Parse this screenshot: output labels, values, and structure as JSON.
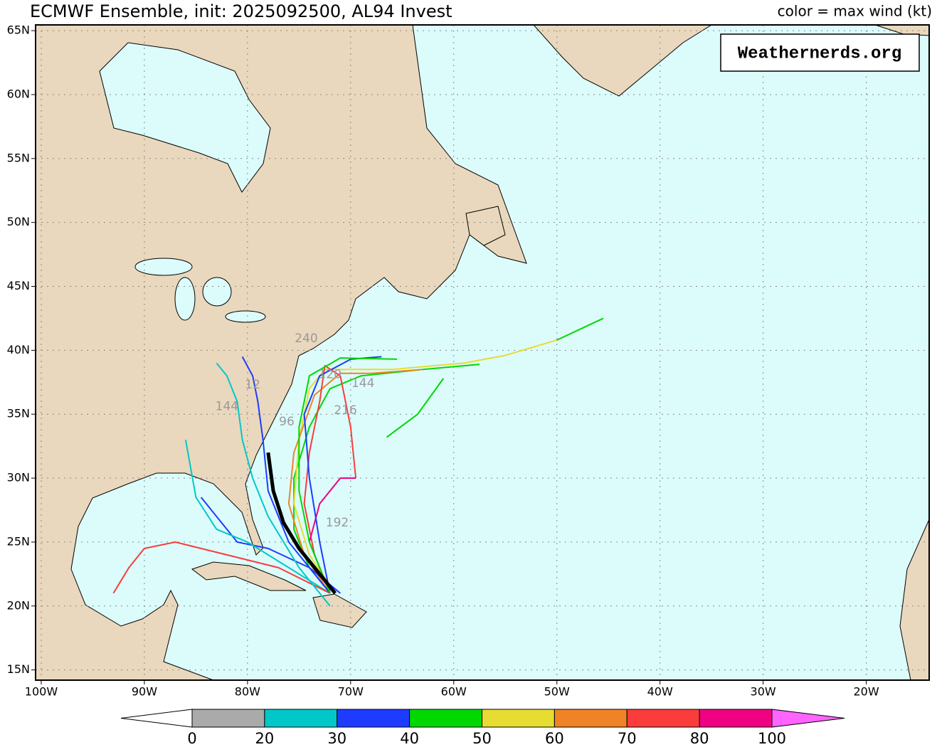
{
  "title": "ECMWF Ensemble, init: 2025092500, AL94 Invest",
  "legend_title": "color = max wind (kt)",
  "watermark": "Weathernerds.org",
  "map": {
    "lon_range": [
      -100.55,
      -13.9
    ],
    "lat_range": [
      14.2,
      65.45
    ],
    "lon_ticks": [
      {
        "value": -100,
        "label": "100W"
      },
      {
        "value": -90,
        "label": "90W"
      },
      {
        "value": -80,
        "label": "80W"
      },
      {
        "value": -70,
        "label": "70W"
      },
      {
        "value": -60,
        "label": "60W"
      },
      {
        "value": -50,
        "label": "50W"
      },
      {
        "value": -40,
        "label": "40W"
      },
      {
        "value": -30,
        "label": "30W"
      },
      {
        "value": -20,
        "label": "20W"
      }
    ],
    "lat_ticks": [
      {
        "value": 65,
        "label": "65N"
      },
      {
        "value": 60,
        "label": "60N"
      },
      {
        "value": 55,
        "label": "55N"
      },
      {
        "value": 50,
        "label": "50N"
      },
      {
        "value": 45,
        "label": "45N"
      },
      {
        "value": 40,
        "label": "40N"
      },
      {
        "value": 35,
        "label": "35N"
      },
      {
        "value": 30,
        "label": "30N"
      },
      {
        "value": 25,
        "label": "25N"
      },
      {
        "value": 20,
        "label": "20N"
      },
      {
        "value": 15,
        "label": "15N"
      }
    ],
    "tracks": [
      {
        "color": "#00d800",
        "lon": [
          -72,
          -74,
          -75.5,
          -75.5,
          -74,
          -72,
          -69,
          -63,
          -57.5
        ],
        "lat": [
          21,
          23,
          26,
          30,
          34,
          37,
          38,
          38.5,
          38.9
        ]
      },
      {
        "color": "#e6dc32",
        "lon": [
          -71.5,
          -74,
          -75.5,
          -75,
          -74,
          -72.5,
          -66,
          -59,
          -55,
          -50
        ],
        "lat": [
          21,
          24,
          28,
          33,
          37,
          38.5,
          38.5,
          39,
          39.6,
          40.8
        ]
      },
      {
        "color": "#00d800",
        "lon": [
          -50,
          -45.5
        ],
        "lat": [
          40.8,
          42.5
        ]
      },
      {
        "color": "#00d800",
        "lon": [
          -66.5,
          -63.5,
          -61
        ],
        "lat": [
          33.2,
          35,
          37.8
        ]
      },
      {
        "color": "#f08228",
        "lon": [
          -72,
          -74.5,
          -76,
          -75.5,
          -73.5,
          -71,
          -68,
          -63
        ],
        "lat": [
          21,
          24,
          28,
          32,
          36.5,
          38.2,
          38.2,
          38.5
        ]
      },
      {
        "color": "#fa3c3c",
        "lon": [
          -72,
          -73.5,
          -74.5,
          -74,
          -73,
          -72.5,
          -71,
          -70,
          -69.5
        ],
        "lat": [
          21,
          24,
          28,
          32,
          36,
          38.8,
          38,
          34,
          30
        ]
      },
      {
        "color": "#1e3cff",
        "lon": [
          -71,
          -74,
          -78,
          -81,
          -83,
          -84.5
        ],
        "lat": [
          21,
          23,
          24.5,
          25,
          27,
          28.5
        ]
      },
      {
        "color": "#00c8c8",
        "lon": [
          -72,
          -76,
          -80,
          -83,
          -85,
          -86
        ],
        "lat": [
          21,
          23,
          25,
          26,
          28.5,
          33
        ]
      },
      {
        "color": "#fa3c3c",
        "lon": [
          -72,
          -77,
          -82,
          -87,
          -90,
          -91.5,
          -93
        ],
        "lat": [
          21,
          23,
          24,
          25,
          24.5,
          23,
          21
        ]
      },
      {
        "color": "#1e3cff",
        "lon": [
          -72,
          -76,
          -78,
          -78.5,
          -79,
          -79.5,
          -80.5
        ],
        "lat": [
          21,
          25,
          29,
          33,
          36,
          38,
          39.5
        ]
      },
      {
        "color": "#00c8c8",
        "lon": [
          -72,
          -75,
          -78,
          -79.5,
          -80.5,
          -81,
          -82,
          -83
        ],
        "lat": [
          20,
          23,
          27,
          30,
          33,
          36,
          38,
          39
        ]
      },
      {
        "color": "#f00082",
        "lon": [
          -72,
          -74,
          -73,
          -71,
          -69.5
        ],
        "lat": [
          21,
          25,
          28,
          30,
          30
        ]
      },
      {
        "color": "#1e3cff",
        "lon": [
          -72,
          -73,
          -74,
          -74.5,
          -73,
          -70,
          -67
        ],
        "lat": [
          21,
          25,
          30,
          35,
          38,
          39.3,
          39.5
        ]
      },
      {
        "color": "#00d800",
        "lon": [
          -72,
          -74,
          -75,
          -75,
          -74,
          -71,
          -65.5
        ],
        "lat": [
          21,
          25,
          29,
          34,
          38,
          39.4,
          39.3
        ]
      },
      {
        "color": "#000000",
        "lon": [
          -71.5,
          -73,
          -75,
          -76.5,
          -77.5,
          -78
        ],
        "lat": [
          21,
          22.5,
          24.5,
          26.5,
          29,
          32
        ]
      }
    ],
    "hour_labels": [
      {
        "text": "240",
        "lon": -74.3,
        "lat": 40.9
      },
      {
        "text": "120",
        "lon": -72,
        "lat": 38.1
      },
      {
        "text": "144",
        "lon": -68.8,
        "lat": 37.4
      },
      {
        "text": "216",
        "lon": -70.5,
        "lat": 35.3
      },
      {
        "text": "192",
        "lon": -71.3,
        "lat": 26.5
      },
      {
        "text": "96",
        "lon": -76.2,
        "lat": 34.4
      },
      {
        "text": "12",
        "lon": -79.5,
        "lat": 37.3
      },
      {
        "text": "144",
        "lon": -82,
        "lat": 35.6
      }
    ]
  },
  "colorbar": {
    "ticks": [
      0,
      20,
      30,
      40,
      50,
      60,
      70,
      80,
      100
    ],
    "colors": [
      "#aaaaaa",
      "#00c8c8",
      "#1e3cff",
      "#00d800",
      "#e6dc32",
      "#f08228",
      "#fa3c3c",
      "#f00082"
    ],
    "under": "#ffffff",
    "over": "#ff64ff"
  }
}
